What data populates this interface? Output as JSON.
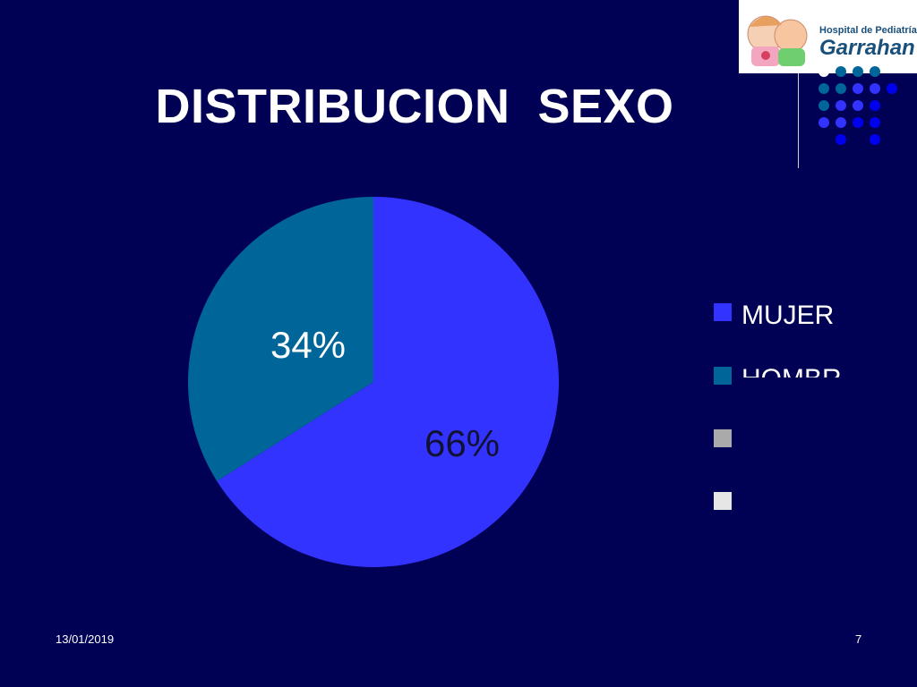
{
  "slide": {
    "title": "DISTRIBUCION  SEXO",
    "date": "13/01/2019",
    "page_number": "7"
  },
  "logo": {
    "line1": "Hospital de Pediatría",
    "line2": "Garrahan"
  },
  "colors": {
    "background": "#000055",
    "mujer": "#3333ff",
    "hombre": "#006699",
    "legend_gray": "#aaaaaa",
    "legend_light": "#e6e6e6"
  },
  "chart_data": {
    "type": "pie",
    "categories": [
      "MUJER",
      "HOMBR"
    ],
    "values": [
      66,
      34
    ],
    "labels": [
      "66%",
      "34%"
    ],
    "legend": [
      "MUJER",
      "HOMBR",
      "",
      ""
    ],
    "legend_placement": "right"
  }
}
